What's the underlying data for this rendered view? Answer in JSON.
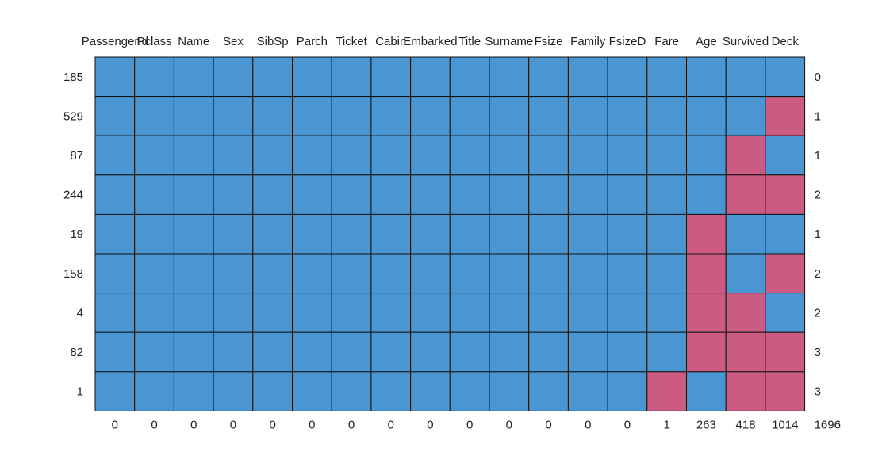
{
  "chart_data": {
    "type": "heatmap",
    "columns": [
      "PassengerId",
      "Pclass",
      "Name",
      "Sex",
      "SibSp",
      "Parch",
      "Ticket",
      "Cabin",
      "Embarked",
      "Title",
      "Surname",
      "Fsize",
      "Family",
      "FsizeD",
      "Fare",
      "Age",
      "Survived",
      "Deck"
    ],
    "rows": [
      "185",
      "529",
      "87",
      "244",
      "19",
      "158",
      "4",
      "82",
      "1"
    ],
    "matrix": [
      [
        0,
        0,
        0,
        0,
        0,
        0,
        0,
        0,
        0,
        0,
        0,
        0,
        0,
        0,
        0,
        0,
        0,
        0
      ],
      [
        0,
        0,
        0,
        0,
        0,
        0,
        0,
        0,
        0,
        0,
        0,
        0,
        0,
        0,
        0,
        0,
        0,
        1
      ],
      [
        0,
        0,
        0,
        0,
        0,
        0,
        0,
        0,
        0,
        0,
        0,
        0,
        0,
        0,
        0,
        0,
        1,
        0
      ],
      [
        0,
        0,
        0,
        0,
        0,
        0,
        0,
        0,
        0,
        0,
        0,
        0,
        0,
        0,
        0,
        0,
        1,
        1
      ],
      [
        0,
        0,
        0,
        0,
        0,
        0,
        0,
        0,
        0,
        0,
        0,
        0,
        0,
        0,
        0,
        1,
        0,
        0
      ],
      [
        0,
        0,
        0,
        0,
        0,
        0,
        0,
        0,
        0,
        0,
        0,
        0,
        0,
        0,
        0,
        1,
        0,
        1
      ],
      [
        0,
        0,
        0,
        0,
        0,
        0,
        0,
        0,
        0,
        0,
        0,
        0,
        0,
        0,
        0,
        1,
        1,
        0
      ],
      [
        0,
        0,
        0,
        0,
        0,
        0,
        0,
        0,
        0,
        0,
        0,
        0,
        0,
        0,
        0,
        1,
        1,
        1
      ],
      [
        0,
        0,
        0,
        0,
        0,
        0,
        0,
        0,
        0,
        0,
        0,
        0,
        0,
        0,
        1,
        0,
        1,
        1
      ]
    ],
    "row_totals": [
      "0",
      "1",
      "1",
      "2",
      "1",
      "2",
      "2",
      "3",
      "3"
    ],
    "column_totals": [
      "0",
      "0",
      "0",
      "0",
      "0",
      "0",
      "0",
      "0",
      "0",
      "0",
      "0",
      "0",
      "0",
      "0",
      "1",
      "263",
      "418",
      "1014"
    ],
    "grand_total": "1696",
    "colors": {
      "present": "#4a96d3",
      "missing": "#cc5b84",
      "border": "#111111"
    }
  }
}
